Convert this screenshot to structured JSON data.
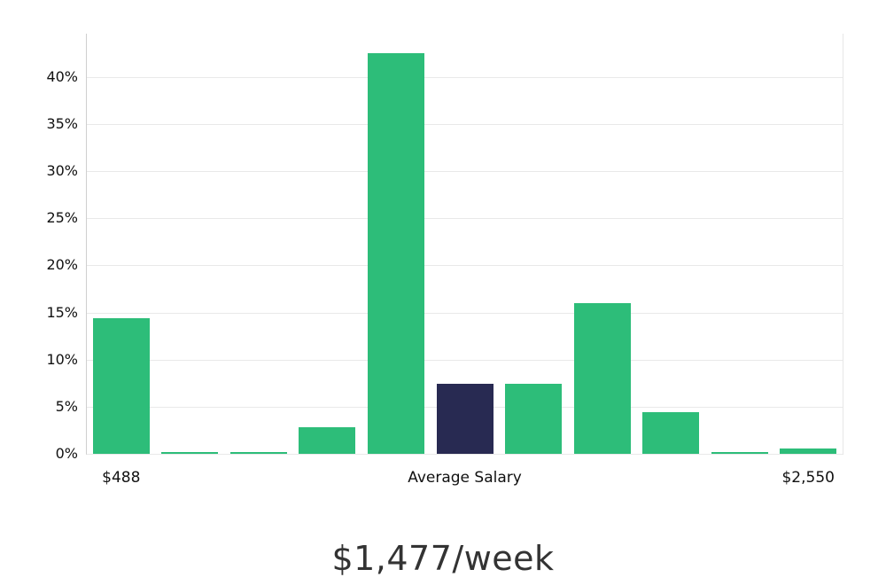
{
  "chart_data": {
    "type": "bar",
    "title": "",
    "xlabel": "",
    "ylabel": "",
    "values": [
      14.4,
      0.15,
      0.15,
      2.8,
      42.5,
      7.4,
      7.4,
      16.0,
      4.4,
      0.15,
      0.6
    ],
    "highlight_index": 5,
    "colors": {
      "bar": "#2dbd79",
      "highlight": "#282a52",
      "grid": "#e9e9e9",
      "axis": "#cfcfcf"
    },
    "yticks": [
      0,
      5,
      10,
      15,
      20,
      25,
      30,
      35,
      40
    ],
    "ytick_labels": [
      "0%",
      "5%",
      "10%",
      "15%",
      "20%",
      "25%",
      "30%",
      "35%",
      "40%"
    ],
    "ylim": [
      0,
      44.6
    ],
    "grid": true,
    "legend_position": "none",
    "xlabels": {
      "left": "$488",
      "center": "Average Salary",
      "right": "$2,550"
    },
    "xlabel_positions_index": [
      0,
      5,
      10
    ]
  },
  "caption": "$1,477/week"
}
